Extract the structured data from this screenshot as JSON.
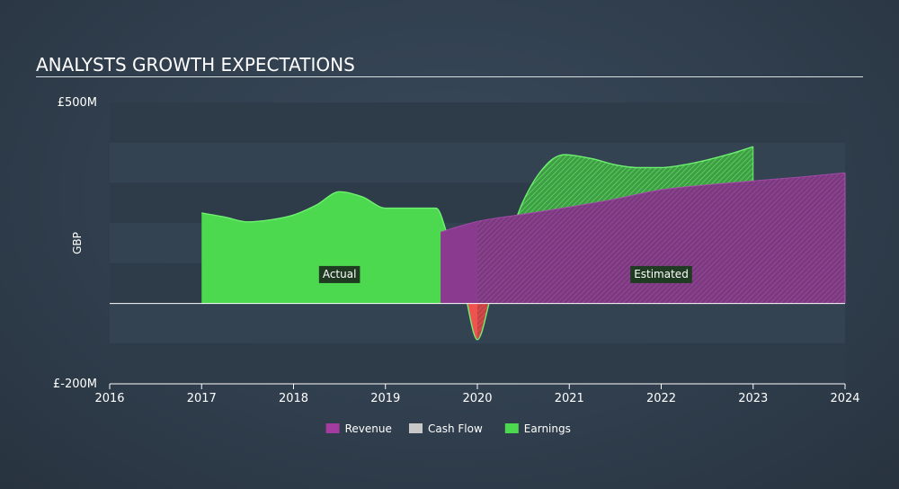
{
  "chart_data": {
    "type": "area",
    "title": "ANALYSTS GROWTH EXPECTATIONS",
    "ylabel": "GBP",
    "xlabel": "",
    "currency_prefix": "£",
    "ylim": [
      -200,
      500
    ],
    "y_tick_labels": [
      {
        "value": 500,
        "label": "£500M"
      },
      {
        "value": -200,
        "label": "£-200M"
      }
    ],
    "xlim": [
      2016,
      2024
    ],
    "x_ticks": [
      2016,
      2017,
      2018,
      2019,
      2020,
      2021,
      2022,
      2023,
      2024
    ],
    "divider_x": 2020,
    "annotations": {
      "actual": "Actual",
      "estimated": "Estimated"
    },
    "colors": {
      "revenue": "#a43b9e",
      "cash_flow": "#c8c8c8",
      "earnings": "#4cd94f",
      "negative": "#ef5350"
    },
    "series": [
      {
        "name": "Revenue",
        "x": [
          2019.6,
          2020,
          2020.5,
          2021,
          2021.5,
          2022,
          2022.5,
          2023,
          2023.5,
          2024
        ],
        "values": [
          178,
          204,
          222,
          240,
          260,
          283,
          295,
          305,
          314,
          325
        ]
      },
      {
        "name": "Cash Flow",
        "x": [],
        "values": []
      },
      {
        "name": "Earnings",
        "x": [
          2017,
          2017.25,
          2017.5,
          2017.75,
          2018,
          2018.25,
          2018.5,
          2018.75,
          2019,
          2019.3,
          2019.55,
          2019.7,
          2019.85,
          2020,
          2020.15,
          2020.3,
          2020.5,
          2020.75,
          2020.95,
          2021.25,
          2021.5,
          2021.75,
          2022,
          2022.25,
          2022.5,
          2022.75,
          2023
        ],
        "values": [
          225,
          215,
          203,
          208,
          220,
          245,
          278,
          265,
          237,
          237,
          237,
          150,
          40,
          -90,
          20,
          130,
          255,
          345,
          370,
          360,
          345,
          338,
          338,
          345,
          357,
          372,
          390
        ]
      }
    ],
    "legend": [
      {
        "name": "Revenue",
        "color": "#a43b9e"
      },
      {
        "name": "Cash Flow",
        "color": "#c8c8c8"
      },
      {
        "name": "Earnings",
        "color": "#4cd94f"
      }
    ]
  }
}
